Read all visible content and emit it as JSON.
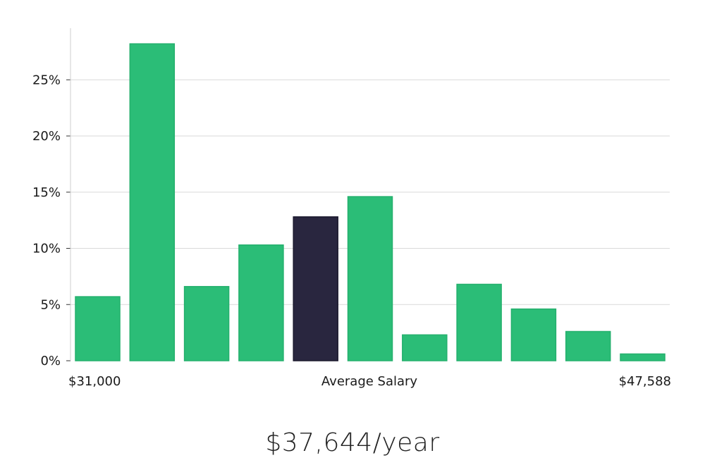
{
  "chart_data": {
    "type": "bar",
    "values": [
      5.7,
      28.2,
      6.6,
      10.3,
      12.8,
      14.6,
      2.3,
      6.8,
      4.6,
      2.6,
      0.6
    ],
    "highlight_index": 4,
    "ylim": [
      0,
      30
    ],
    "yticks": [
      0,
      5,
      10,
      15,
      20,
      25
    ],
    "ytick_labels": [
      "0%",
      "5%",
      "10%",
      "15%",
      "20%",
      "25%"
    ],
    "x_min_label": "$31,000",
    "x_center_label": "Average Salary",
    "x_max_label": "$47,588",
    "grid": true,
    "colors": {
      "bar": "#2bbd77",
      "highlight": "#29263f",
      "grid": "#d9d9d9",
      "axis": "#cfcfcf"
    }
  },
  "summary": {
    "salary_text": "$37,644/year"
  }
}
